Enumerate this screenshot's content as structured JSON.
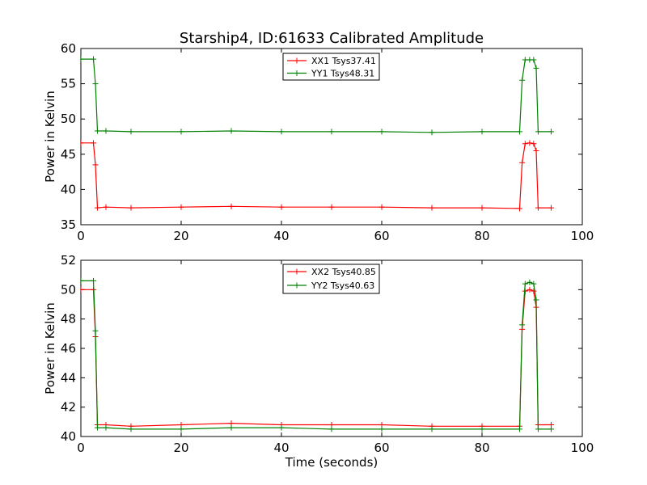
{
  "title": "Starship4, ID:61633 Calibrated Amplitude",
  "chart_data": [
    {
      "type": "line",
      "ylabel": "Power in Kelvin",
      "xlabel": "",
      "xlim": [
        0,
        100
      ],
      "ylim": [
        35,
        60
      ],
      "xticks": [
        "0",
        "20",
        "40",
        "60",
        "80",
        "100"
      ],
      "yticks": [
        "35",
        "40",
        "45",
        "50",
        "55",
        "60"
      ],
      "legend_position": "top-center",
      "grid": false,
      "series": [
        {
          "name": "XX1 Tsys37.41",
          "color": "#ff0000",
          "marker": "+",
          "x": [
            0,
            2.5,
            2.9,
            3.3,
            5,
            10,
            20,
            30,
            40,
            50,
            60,
            70,
            80,
            87.5,
            88.0,
            88.6,
            89.5,
            90.3,
            90.8,
            91.2,
            93.8
          ],
          "y": [
            46.6,
            46.6,
            43.5,
            37.4,
            37.5,
            37.4,
            37.5,
            37.6,
            37.5,
            37.5,
            37.5,
            37.4,
            37.4,
            37.3,
            43.8,
            46.5,
            46.6,
            46.5,
            45.5,
            37.4,
            37.4
          ]
        },
        {
          "name": "YY1 Tsys48.31",
          "color": "#008000",
          "marker": "+",
          "x": [
            0,
            2.5,
            2.9,
            3.3,
            5,
            10,
            20,
            30,
            40,
            50,
            60,
            70,
            80,
            87.5,
            88.0,
            88.6,
            89.5,
            90.3,
            90.8,
            91.2,
            93.8
          ],
          "y": [
            58.5,
            58.5,
            55.0,
            48.3,
            48.3,
            48.2,
            48.2,
            48.3,
            48.2,
            48.2,
            48.2,
            48.1,
            48.2,
            48.2,
            55.5,
            58.4,
            58.4,
            58.4,
            57.2,
            48.2,
            48.2
          ]
        }
      ]
    },
    {
      "type": "line",
      "ylabel": "Power in Kelvin",
      "xlabel": "Time (seconds)",
      "xlim": [
        0,
        100
      ],
      "ylim": [
        40,
        52
      ],
      "xticks": [
        "0",
        "20",
        "40",
        "60",
        "80",
        "100"
      ],
      "yticks": [
        "40",
        "42",
        "44",
        "46",
        "48",
        "50",
        "52"
      ],
      "legend_position": "top-center",
      "grid": false,
      "series": [
        {
          "name": "XX2 Tsys40.85",
          "color": "#ff0000",
          "marker": "+",
          "x": [
            0,
            2.5,
            2.9,
            3.3,
            5,
            10,
            20,
            30,
            40,
            50,
            60,
            70,
            80,
            87.5,
            88.0,
            88.6,
            89.5,
            90.3,
            90.8,
            91.2,
            93.8
          ],
          "y": [
            50.0,
            50.0,
            46.8,
            40.8,
            40.8,
            40.7,
            40.8,
            40.9,
            40.8,
            40.8,
            40.8,
            40.7,
            40.7,
            40.7,
            47.3,
            49.9,
            50.0,
            49.9,
            48.8,
            40.8,
            40.8
          ]
        },
        {
          "name": "YY2 Tsys40.63",
          "color": "#008000",
          "marker": "+",
          "x": [
            0,
            2.5,
            2.9,
            3.3,
            5,
            10,
            20,
            30,
            40,
            50,
            60,
            70,
            80,
            87.5,
            88.0,
            88.6,
            89.5,
            90.3,
            90.8,
            91.2,
            93.8
          ],
          "y": [
            50.6,
            50.6,
            47.2,
            40.6,
            40.6,
            40.5,
            40.5,
            40.6,
            40.6,
            40.5,
            40.5,
            40.5,
            40.5,
            40.5,
            47.6,
            50.4,
            50.5,
            50.4,
            49.3,
            40.5,
            40.5
          ]
        }
      ]
    }
  ]
}
